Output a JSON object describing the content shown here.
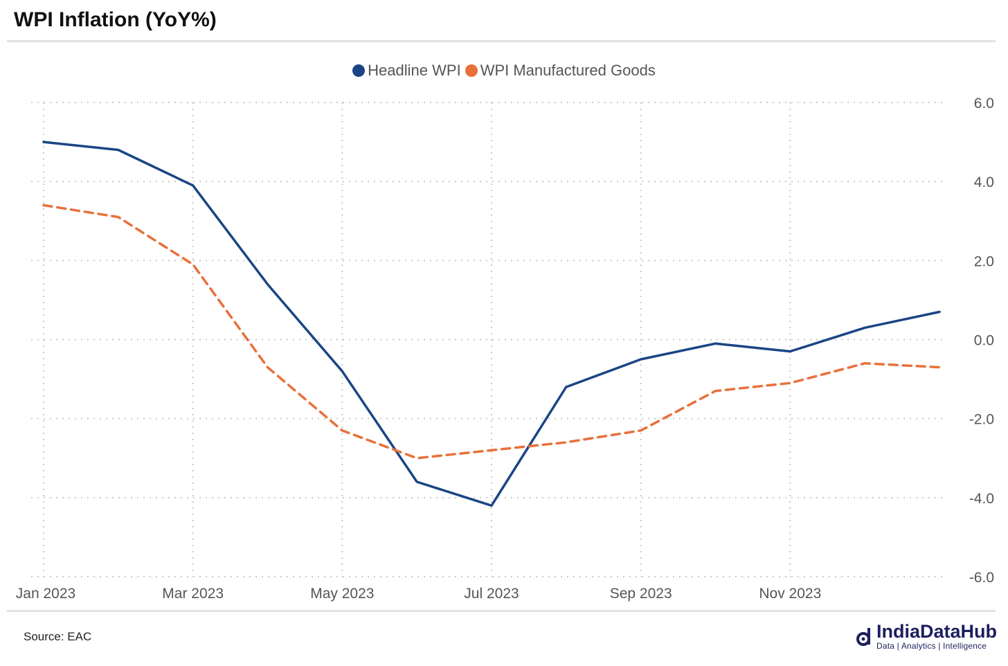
{
  "title": "WPI Inflation (YoY%)",
  "source": "Source: EAC",
  "brand": {
    "name": "IndiaDataHub",
    "tagline": "Data | Analytics | Intelligence",
    "color": "#1d1f5e"
  },
  "chart_data": {
    "type": "line",
    "x": [
      "Jan 2023",
      "Feb 2023",
      "Mar 2023",
      "Apr 2023",
      "May 2023",
      "Jun 2023",
      "Jul 2023",
      "Aug 2023",
      "Sep 2023",
      "Oct 2023",
      "Nov 2023",
      "Dec 2023",
      "Jan 2024"
    ],
    "xticks": [
      "Jan 2023",
      "Mar 2023",
      "May 2023",
      "Jul 2023",
      "Sep 2023",
      "Nov 2023"
    ],
    "yticks": [
      "6.0",
      "4.0",
      "2.0",
      "0.0",
      "-2.0",
      "-4.0",
      "-6.0"
    ],
    "ylim": [
      -6,
      6
    ],
    "grid": true,
    "y_axis_side": "right",
    "legend_position": "top-center",
    "series": [
      {
        "name": "Headline WPI",
        "color": "#1b4584",
        "style": "solid",
        "values": [
          5.0,
          4.8,
          3.9,
          1.4,
          -0.8,
          -3.6,
          -4.2,
          -1.2,
          -0.5,
          -0.1,
          -0.3,
          0.3,
          0.7
        ]
      },
      {
        "name": "WPI Manufactured Goods",
        "color": "#e8703a",
        "style": "dashed",
        "values": [
          3.4,
          3.1,
          1.9,
          -0.7,
          -2.3,
          -3.0,
          -2.8,
          -2.6,
          -2.3,
          -1.3,
          -1.1,
          -0.6,
          -0.7
        ]
      }
    ]
  }
}
